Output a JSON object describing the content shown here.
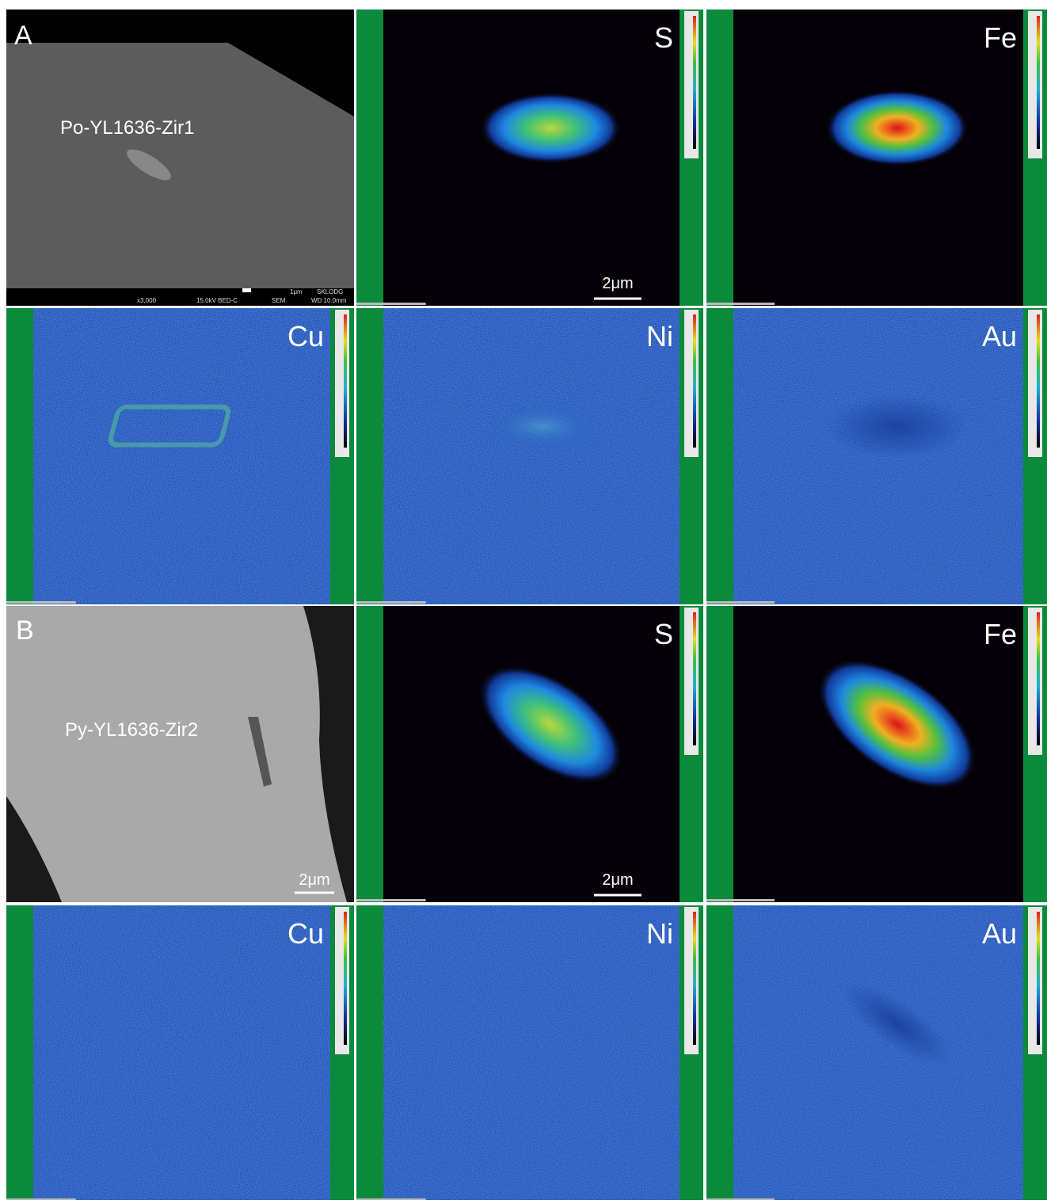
{
  "sets": [
    {
      "label": "A",
      "sem": {
        "sample": "Po-YL1636-Zir1",
        "footer_top": [
          "1μm",
          "SKLODG"
        ],
        "footer_bottom": [
          "x3,000",
          "15.0kV BED-C",
          "SEM",
          "WD 10.0mm"
        ]
      },
      "maps": [
        {
          "element": "S",
          "scale": "2μm"
        },
        {
          "element": "Fe"
        },
        {
          "element": "Cu"
        },
        {
          "element": "Ni"
        },
        {
          "element": "Au"
        }
      ]
    },
    {
      "label": "B",
      "sem": {
        "sample": "Py-YL1636-Zir2",
        "scale": "2μm"
      },
      "maps": [
        {
          "element": "S",
          "scale": "2μm"
        },
        {
          "element": "Fe"
        },
        {
          "element": "Cu"
        },
        {
          "element": "Ni"
        },
        {
          "element": "Au"
        }
      ]
    }
  ]
}
